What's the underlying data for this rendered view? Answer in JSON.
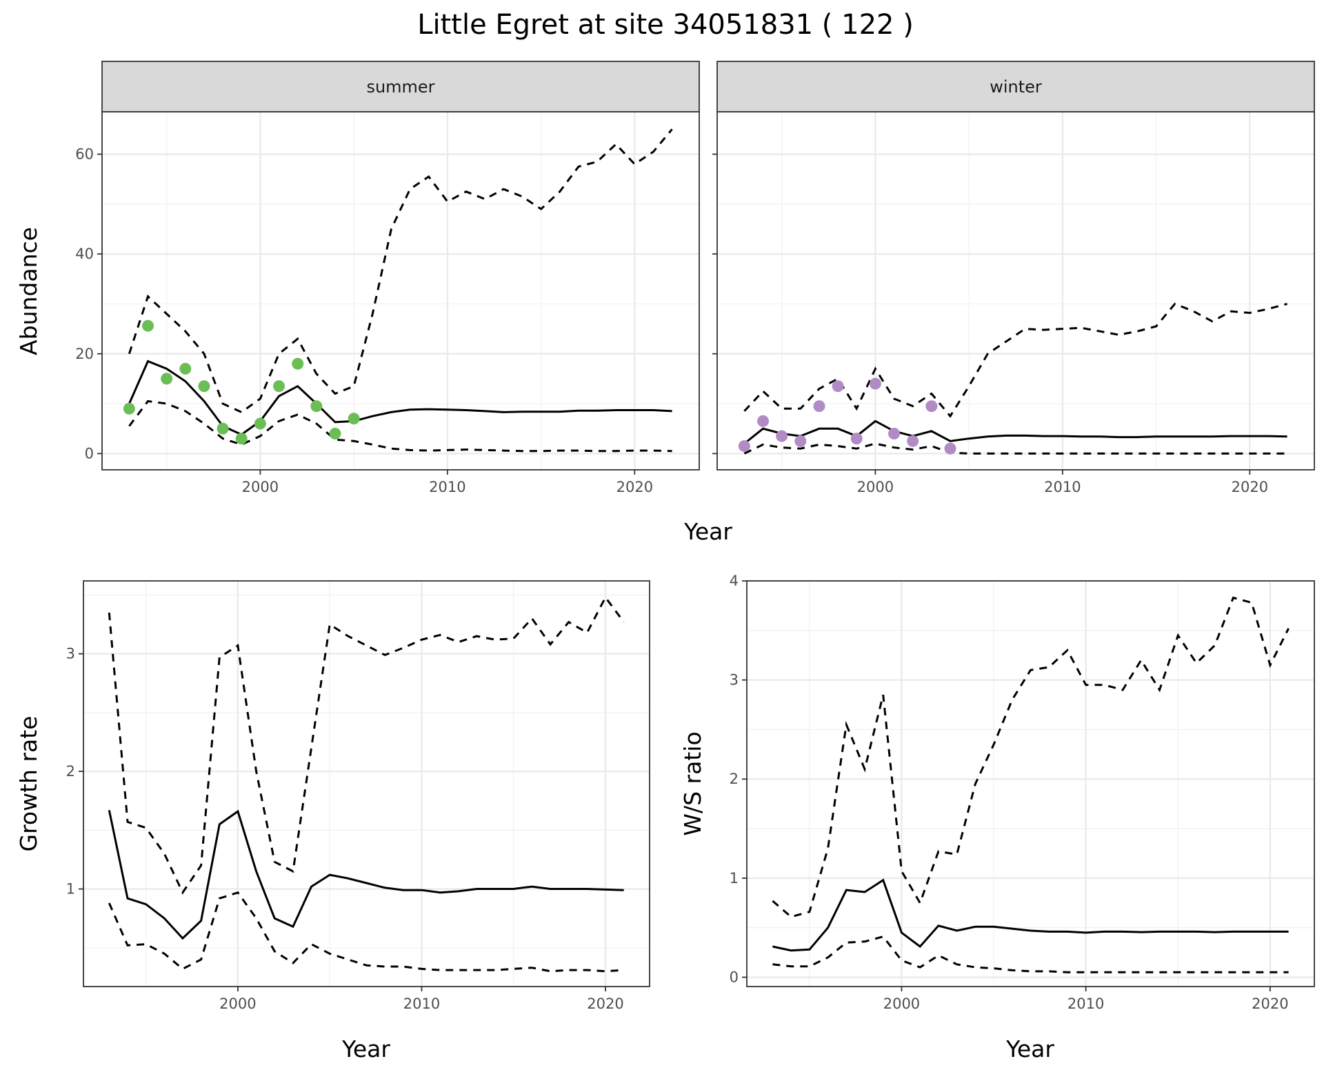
{
  "title": "Little Egret at site 34051831 ( 122 )",
  "colors": {
    "summer_points": "#6BBE55",
    "winter_points": "#B08BC6",
    "lines": "#000000",
    "grid": "#EBEBEB",
    "strip": "#D9D9D9"
  },
  "chart_data": [
    {
      "type": "line",
      "panel": "summer",
      "strip_label": "summer",
      "ylabel": "Abundance",
      "xlabel": "Year",
      "xlim": [
        1991.55,
        2023.45
      ],
      "ylim": [
        -3.26,
        68.5
      ],
      "xticks": [
        2000,
        2010,
        2020
      ],
      "yticks": [
        0,
        20,
        40,
        60
      ],
      "grid": true,
      "x": [
        1993,
        1994,
        1995,
        1996,
        1997,
        1998,
        1999,
        2000,
        2001,
        2002,
        2003,
        2004,
        2005,
        2006,
        2007,
        2008,
        2009,
        2010,
        2011,
        2012,
        2013,
        2014,
        2015,
        2016,
        2017,
        2018,
        2019,
        2020,
        2021,
        2022
      ],
      "series": [
        {
          "role": "mean",
          "style": "solid",
          "values": [
            10,
            18.5,
            17,
            14.5,
            10.5,
            5.5,
            3.8,
            6.5,
            11.5,
            13.5,
            10,
            6.3,
            6.5,
            7.5,
            8.3,
            8.8,
            8.9,
            8.8,
            8.7,
            8.5,
            8.3,
            8.4,
            8.4,
            8.4,
            8.6,
            8.6,
            8.7,
            8.7,
            8.7,
            8.5
          ]
        },
        {
          "role": "upper",
          "style": "dashed",
          "values": [
            20,
            31.5,
            28,
            24.5,
            20,
            10,
            8.3,
            11,
            20,
            23,
            16,
            12,
            13.5,
            28,
            45,
            53,
            55.5,
            50.5,
            52.5,
            51,
            53,
            51.5,
            49,
            52.5,
            57.5,
            58.5,
            62,
            58,
            60.5,
            65
          ]
        },
        {
          "role": "lower",
          "style": "dashed",
          "values": [
            5.5,
            10.5,
            10,
            8.5,
            6,
            3,
            1.8,
            3.5,
            6.5,
            7.8,
            6,
            2.8,
            2.5,
            1.8,
            1,
            0.7,
            0.6,
            0.7,
            0.8,
            0.7,
            0.6,
            0.5,
            0.5,
            0.6,
            0.6,
            0.5,
            0.5,
            0.6,
            0.6,
            0.5
          ]
        }
      ],
      "points": {
        "x": [
          1993,
          1994,
          1995,
          1996,
          1997,
          1998,
          1999,
          2000,
          2001,
          2002,
          2003,
          2004,
          2005
        ],
        "y": [
          9,
          25.6,
          15,
          17,
          13.5,
          5,
          3,
          6,
          13.5,
          18,
          9.5,
          4,
          7
        ]
      }
    },
    {
      "type": "line",
      "panel": "winter",
      "strip_label": "winter",
      "xlim": [
        1991.55,
        2023.45
      ],
      "ylim": [
        -3.26,
        68.5
      ],
      "xticks": [
        2000,
        2010,
        2020
      ],
      "yticks": [
        0,
        20,
        40,
        60
      ],
      "grid": true,
      "x": [
        1993,
        1994,
        1995,
        1996,
        1997,
        1998,
        1999,
        2000,
        2001,
        2002,
        2003,
        2004,
        2005,
        2006,
        2007,
        2008,
        2009,
        2010,
        2011,
        2012,
        2013,
        2014,
        2015,
        2016,
        2017,
        2018,
        2019,
        2020,
        2021,
        2022
      ],
      "series": [
        {
          "role": "mean",
          "style": "solid",
          "values": [
            2,
            5,
            4,
            3.5,
            5,
            5,
            3.5,
            6.5,
            4.5,
            3.5,
            4.5,
            2.5,
            3,
            3.4,
            3.6,
            3.6,
            3.5,
            3.5,
            3.4,
            3.4,
            3.3,
            3.3,
            3.4,
            3.4,
            3.4,
            3.4,
            3.5,
            3.5,
            3.5,
            3.4
          ]
        },
        {
          "role": "upper",
          "style": "dashed",
          "values": [
            8.5,
            12.5,
            9,
            9,
            13,
            15,
            9,
            17,
            11,
            9.5,
            12,
            7.5,
            13.5,
            20,
            22.5,
            25,
            24.8,
            25,
            25.2,
            24.5,
            23.8,
            24.5,
            25.5,
            30,
            28.5,
            26.5,
            28.5,
            28.2,
            29,
            30
          ]
        },
        {
          "role": "lower",
          "style": "dashed",
          "values": [
            0,
            1.8,
            1.2,
            1,
            1.8,
            1.5,
            1,
            2,
            1.2,
            0.8,
            1.5,
            0.2,
            0,
            0,
            0,
            0,
            0,
            0,
            0,
            0,
            0,
            0,
            0,
            0,
            0,
            0,
            0,
            0,
            0,
            0
          ]
        }
      ],
      "points": {
        "x": [
          1993,
          1994,
          1995,
          1996,
          1997,
          1998,
          1999,
          2000,
          2001,
          2002,
          2003,
          2004
        ],
        "y": [
          1.5,
          6.5,
          3.5,
          2.5,
          9.5,
          13.5,
          3,
          14,
          4,
          2.5,
          9.5,
          1
        ]
      }
    },
    {
      "type": "line",
      "panel": "growth",
      "ylabel": "Growth rate",
      "xlabel": "Year",
      "xlim": [
        1991.6,
        2022.4
      ],
      "ylim": [
        0.17,
        3.62
      ],
      "xticks": [
        2000,
        2010,
        2020
      ],
      "yticks": [
        1,
        2,
        3
      ],
      "grid": true,
      "x": [
        1993,
        1994,
        1995,
        1996,
        1997,
        1998,
        1999,
        2000,
        2001,
        2002,
        2003,
        2004,
        2005,
        2006,
        2007,
        2008,
        2009,
        2010,
        2011,
        2012,
        2013,
        2014,
        2015,
        2016,
        2017,
        2018,
        2019,
        2020,
        2021
      ],
      "series": [
        {
          "role": "mean",
          "style": "solid",
          "values": [
            1.67,
            0.92,
            0.87,
            0.75,
            0.58,
            0.73,
            1.55,
            1.66,
            1.15,
            0.75,
            0.68,
            1.02,
            1.12,
            1.09,
            1.05,
            1.01,
            0.99,
            0.99,
            0.97,
            0.98,
            1.0,
            1.0,
            1.0,
            1.02,
            1.0,
            1.0,
            1.0,
            0.995,
            0.99
          ]
        },
        {
          "role": "upper",
          "style": "dashed",
          "values": [
            3.35,
            1.57,
            1.52,
            1.3,
            0.97,
            1.2,
            2.97,
            3.07,
            2.0,
            1.23,
            1.15,
            2.2,
            3.25,
            3.15,
            3.07,
            2.99,
            3.05,
            3.12,
            3.16,
            3.1,
            3.15,
            3.12,
            3.13,
            3.3,
            3.08,
            3.27,
            3.18,
            3.48,
            3.27
          ]
        },
        {
          "role": "lower",
          "style": "dashed",
          "values": [
            0.88,
            0.52,
            0.53,
            0.45,
            0.32,
            0.4,
            0.92,
            0.97,
            0.75,
            0.47,
            0.37,
            0.53,
            0.45,
            0.4,
            0.35,
            0.34,
            0.34,
            0.32,
            0.31,
            0.31,
            0.31,
            0.31,
            0.32,
            0.33,
            0.3,
            0.31,
            0.31,
            0.3,
            0.31
          ]
        }
      ]
    },
    {
      "type": "line",
      "panel": "ratio",
      "ylabel": "W/S ratio",
      "xlabel": "Year",
      "xlim": [
        1991.6,
        2022.4
      ],
      "ylim": [
        -0.094,
        4.0
      ],
      "xticks": [
        2000,
        2010,
        2020
      ],
      "yticks": [
        0,
        1,
        2,
        3,
        4
      ],
      "grid": true,
      "x": [
        1993,
        1994,
        1995,
        1996,
        1997,
        1998,
        1999,
        2000,
        2001,
        2002,
        2003,
        2004,
        2005,
        2006,
        2007,
        2008,
        2009,
        2010,
        2011,
        2012,
        2013,
        2014,
        2015,
        2016,
        2017,
        2018,
        2019,
        2020,
        2021
      ],
      "series": [
        {
          "role": "mean",
          "style": "solid",
          "values": [
            0.31,
            0.27,
            0.28,
            0.5,
            0.88,
            0.86,
            0.98,
            0.45,
            0.31,
            0.52,
            0.47,
            0.51,
            0.51,
            0.49,
            0.47,
            0.46,
            0.46,
            0.45,
            0.46,
            0.46,
            0.455,
            0.46,
            0.46,
            0.46,
            0.455,
            0.46,
            0.46,
            0.46,
            0.46
          ]
        },
        {
          "role": "upper",
          "style": "dashed",
          "values": [
            0.77,
            0.61,
            0.66,
            1.3,
            2.55,
            2.1,
            2.85,
            1.07,
            0.75,
            1.27,
            1.24,
            1.95,
            2.35,
            2.8,
            3.1,
            3.13,
            3.3,
            2.95,
            2.95,
            2.9,
            3.2,
            2.9,
            3.45,
            3.17,
            3.35,
            3.83,
            3.78,
            3.15,
            3.52
          ]
        },
        {
          "role": "lower",
          "style": "dashed",
          "values": [
            0.13,
            0.11,
            0.11,
            0.2,
            0.35,
            0.36,
            0.41,
            0.17,
            0.1,
            0.22,
            0.13,
            0.1,
            0.09,
            0.07,
            0.06,
            0.06,
            0.05,
            0.05,
            0.05,
            0.05,
            0.05,
            0.05,
            0.05,
            0.05,
            0.05,
            0.05,
            0.05,
            0.05,
            0.05
          ]
        }
      ]
    }
  ]
}
